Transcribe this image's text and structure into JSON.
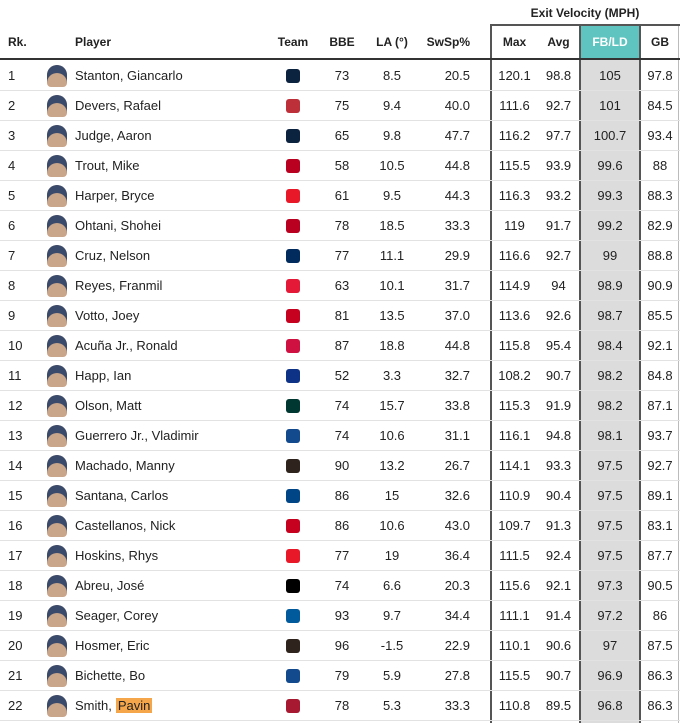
{
  "group_header": "Exit Velocity (MPH)",
  "columns": [
    "Rk.",
    "Player",
    "Team",
    "BBE",
    "LA (°)",
    "SwSp%",
    "Max",
    "Avg",
    "FB/LD",
    "GB"
  ],
  "rows": [
    {
      "rank": "1",
      "player": "Stanton, Giancarlo",
      "logo_color": "#0c2340",
      "bbe": "73",
      "la": "8.5",
      "swsp": "20.5",
      "max": "120.1",
      "avg": "98.8",
      "fbld": "105",
      "gb": "97.8"
    },
    {
      "rank": "2",
      "player": "Devers, Rafael",
      "logo_color": "#bd3039",
      "bbe": "75",
      "la": "9.4",
      "swsp": "40.0",
      "max": "111.6",
      "avg": "92.7",
      "fbld": "101",
      "gb": "84.5"
    },
    {
      "rank": "3",
      "player": "Judge, Aaron",
      "logo_color": "#0c2340",
      "bbe": "65",
      "la": "9.8",
      "swsp": "47.7",
      "max": "116.2",
      "avg": "97.7",
      "fbld": "100.7",
      "gb": "93.4"
    },
    {
      "rank": "4",
      "player": "Trout, Mike",
      "logo_color": "#ba0021",
      "bbe": "58",
      "la": "10.5",
      "swsp": "44.8",
      "max": "115.5",
      "avg": "93.9",
      "fbld": "99.6",
      "gb": "88"
    },
    {
      "rank": "5",
      "player": "Harper, Bryce",
      "logo_color": "#e81828",
      "bbe": "61",
      "la": "9.5",
      "swsp": "44.3",
      "max": "116.3",
      "avg": "93.2",
      "fbld": "99.3",
      "gb": "88.3"
    },
    {
      "rank": "6",
      "player": "Ohtani, Shohei",
      "logo_color": "#ba0021",
      "bbe": "78",
      "la": "18.5",
      "swsp": "33.3",
      "max": "119",
      "avg": "91.7",
      "fbld": "99.2",
      "gb": "82.9"
    },
    {
      "rank": "7",
      "player": "Cruz, Nelson",
      "logo_color": "#002b5c",
      "bbe": "77",
      "la": "11.1",
      "swsp": "29.9",
      "max": "116.6",
      "avg": "92.7",
      "fbld": "99",
      "gb": "88.8"
    },
    {
      "rank": "8",
      "player": "Reyes, Franmil",
      "logo_color": "#e31937",
      "bbe": "63",
      "la": "10.1",
      "swsp": "31.7",
      "max": "114.9",
      "avg": "94",
      "fbld": "98.9",
      "gb": "90.9"
    },
    {
      "rank": "9",
      "player": "Votto, Joey",
      "logo_color": "#c6011f",
      "bbe": "81",
      "la": "13.5",
      "swsp": "37.0",
      "max": "113.6",
      "avg": "92.6",
      "fbld": "98.7",
      "gb": "85.5"
    },
    {
      "rank": "10",
      "player": "Acuña Jr., Ronald",
      "logo_color": "#ce1141",
      "bbe": "87",
      "la": "18.8",
      "swsp": "44.8",
      "max": "115.8",
      "avg": "95.4",
      "fbld": "98.4",
      "gb": "92.1"
    },
    {
      "rank": "11",
      "player": "Happ, Ian",
      "logo_color": "#0e3386",
      "bbe": "52",
      "la": "3.3",
      "swsp": "32.7",
      "max": "108.2",
      "avg": "90.7",
      "fbld": "98.2",
      "gb": "84.8"
    },
    {
      "rank": "12",
      "player": "Olson, Matt",
      "logo_color": "#003831",
      "bbe": "74",
      "la": "15.7",
      "swsp": "33.8",
      "max": "115.3",
      "avg": "91.9",
      "fbld": "98.2",
      "gb": "87.1"
    },
    {
      "rank": "13",
      "player": "Guerrero Jr., Vladimir",
      "logo_color": "#134a8e",
      "bbe": "74",
      "la": "10.6",
      "swsp": "31.1",
      "max": "116.1",
      "avg": "94.8",
      "fbld": "98.1",
      "gb": "93.7"
    },
    {
      "rank": "14",
      "player": "Machado, Manny",
      "logo_color": "#2f241d",
      "bbe": "90",
      "la": "13.2",
      "swsp": "26.7",
      "max": "114.1",
      "avg": "93.3",
      "fbld": "97.5",
      "gb": "92.7"
    },
    {
      "rank": "15",
      "player": "Santana, Carlos",
      "logo_color": "#004687",
      "bbe": "86",
      "la": "15",
      "swsp": "32.6",
      "max": "110.9",
      "avg": "90.4",
      "fbld": "97.5",
      "gb": "89.1"
    },
    {
      "rank": "16",
      "player": "Castellanos, Nick",
      "logo_color": "#c6011f",
      "bbe": "86",
      "la": "10.6",
      "swsp": "43.0",
      "max": "109.7",
      "avg": "91.3",
      "fbld": "97.5",
      "gb": "83.1"
    },
    {
      "rank": "17",
      "player": "Hoskins, Rhys",
      "logo_color": "#e81828",
      "bbe": "77",
      "la": "19",
      "swsp": "36.4",
      "max": "111.5",
      "avg": "92.4",
      "fbld": "97.5",
      "gb": "87.7"
    },
    {
      "rank": "18",
      "player": "Abreu, José",
      "logo_color": "#000000",
      "bbe": "74",
      "la": "6.6",
      "swsp": "20.3",
      "max": "115.6",
      "avg": "92.1",
      "fbld": "97.3",
      "gb": "90.5"
    },
    {
      "rank": "19",
      "player": "Seager, Corey",
      "logo_color": "#005a9c",
      "bbe": "93",
      "la": "9.7",
      "swsp": "34.4",
      "max": "111.1",
      "avg": "91.4",
      "fbld": "97.2",
      "gb": "86"
    },
    {
      "rank": "20",
      "player": "Hosmer, Eric",
      "logo_color": "#2f241d",
      "bbe": "96",
      "la": "-1.5",
      "swsp": "22.9",
      "max": "110.1",
      "avg": "90.6",
      "fbld": "97",
      "gb": "87.5"
    },
    {
      "rank": "21",
      "player": "Bichette, Bo",
      "logo_color": "#134a8e",
      "bbe": "79",
      "la": "5.9",
      "swsp": "27.8",
      "max": "115.5",
      "avg": "90.7",
      "fbld": "96.9",
      "gb": "86.3"
    },
    {
      "rank": "22",
      "player": "Smith,",
      "player_highlight": "Pavin",
      "logo_color": "#a71930",
      "bbe": "78",
      "la": "5.3",
      "swsp": "33.3",
      "max": "110.8",
      "avg": "89.5",
      "fbld": "96.8",
      "gb": "86.3"
    }
  ]
}
